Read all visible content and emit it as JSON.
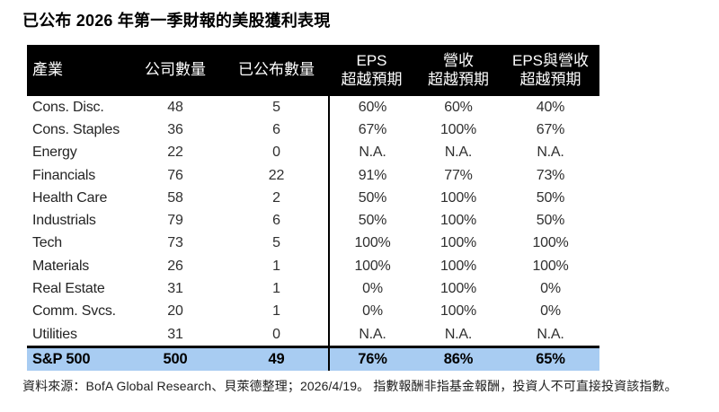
{
  "page_title": "已公布 2026 年第一季財報的美股獲利表現",
  "table": {
    "header": {
      "sector": "產業",
      "companies": "公司數量",
      "reported": "已公布數量",
      "eps_line1": "EPS",
      "eps_line2": "超越預期",
      "rev_line1": "營收",
      "rev_line2": "超越預期",
      "both_line1": "EPS與營收",
      "both_line2": "超越預期"
    }
  },
  "footer": {
    "source_note": "資料來源：BofA Global Research、貝萊德整理；2026/4/19。 指數報酬非指基金報酬，投資人不可直接投資該指數。"
  },
  "colors": {
    "header_bg": "#000000",
    "header_text": "#ffffff",
    "total_row_bg": "#a8ccf2",
    "body_text": "#2f2f2f",
    "divider": "#000000"
  },
  "chart_data": {
    "type": "table",
    "title": "已公布 2026 年第一季財報的美股獲利表現",
    "columns": [
      "產業",
      "公司數量",
      "已公布數量",
      "EPS超越預期",
      "營收超越預期",
      "EPS與營收超越預期"
    ],
    "rows": [
      [
        "Cons. Disc.",
        "48",
        "5",
        "60%",
        "60%",
        "40%"
      ],
      [
        "Cons. Staples",
        "36",
        "6",
        "67%",
        "100%",
        "67%"
      ],
      [
        "Energy",
        "22",
        "0",
        "N.A.",
        "N.A.",
        "N.A."
      ],
      [
        "Financials",
        "76",
        "22",
        "91%",
        "77%",
        "73%"
      ],
      [
        "Health Care",
        "58",
        "2",
        "50%",
        "100%",
        "50%"
      ],
      [
        "Industrials",
        "79",
        "6",
        "50%",
        "100%",
        "50%"
      ],
      [
        "Tech",
        "73",
        "5",
        "100%",
        "100%",
        "100%"
      ],
      [
        "Materials",
        "26",
        "1",
        "100%",
        "100%",
        "100%"
      ],
      [
        "Real Estate",
        "31",
        "1",
        "0%",
        "100%",
        "0%"
      ],
      [
        "Comm. Svcs.",
        "20",
        "1",
        "0%",
        "100%",
        "0%"
      ],
      [
        "Utilities",
        "31",
        "0",
        "N.A.",
        "N.A.",
        "N.A."
      ]
    ],
    "total_row": [
      "S&P 500",
      "500",
      "49",
      "76%",
      "86%",
      "65%"
    ],
    "source": "資料來源：BofA Global Research、貝萊德整理；2026/4/19。 指數報酬非指基金報酬，投資人不可直接投資該指數。"
  }
}
